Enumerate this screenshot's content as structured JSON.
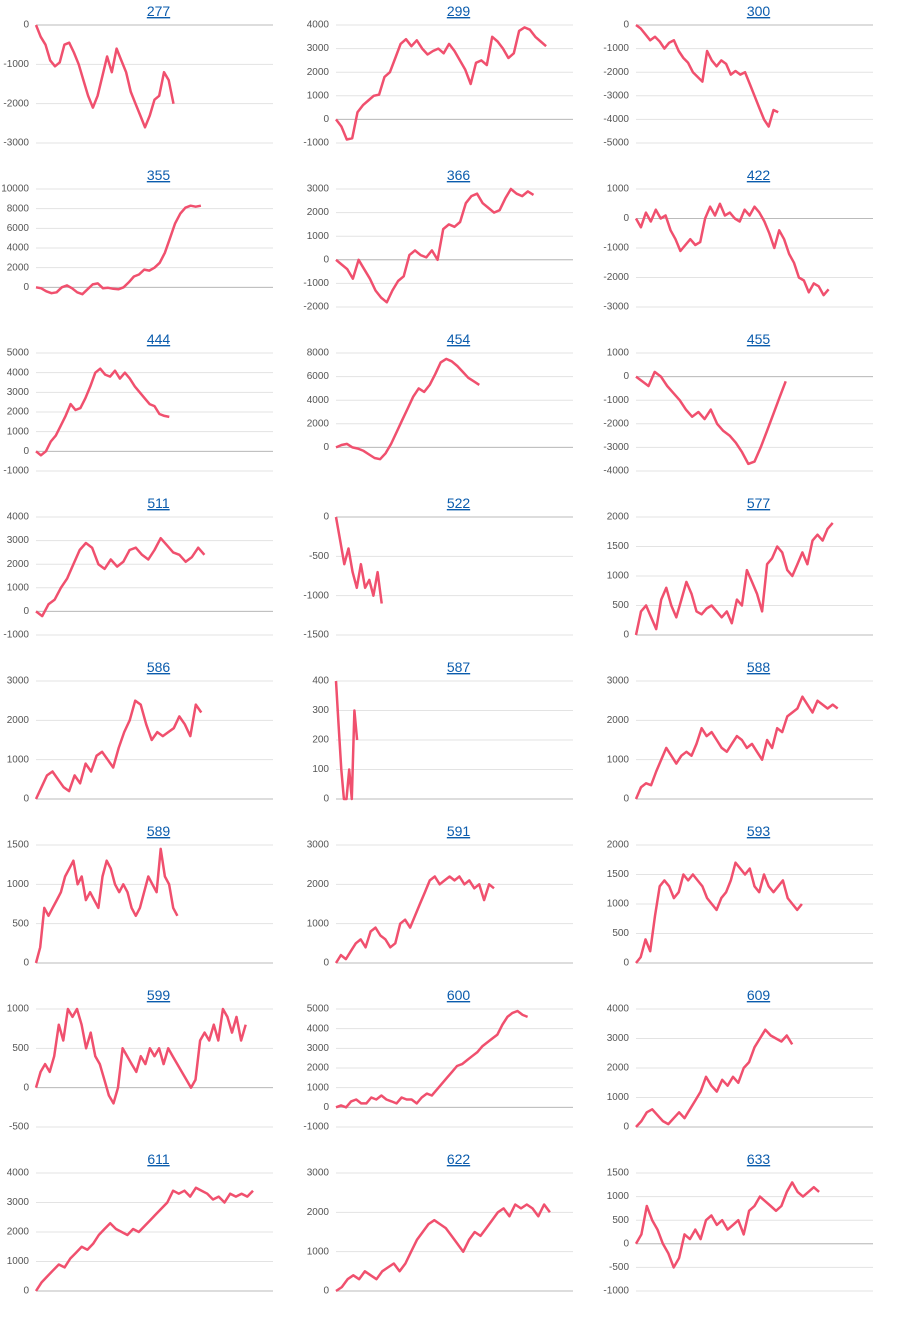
{
  "chart_data": [
    {
      "type": "line",
      "title": "277",
      "color": "#f0506e",
      "xlim": [
        0,
        50
      ],
      "ylim": [
        -3000,
        0
      ],
      "yticks": [
        0,
        -1000,
        -2000,
        -3000
      ],
      "grid": true,
      "values": [
        0,
        -300,
        -500,
        -900,
        -1050,
        -950,
        -500,
        -450,
        -700,
        -1000,
        -1400,
        -1800,
        -2100,
        -1800,
        -1300,
        -800,
        -1200,
        -600,
        -900,
        -1200,
        -1700,
        -2000,
        -2300,
        -2600,
        -2300,
        -1900,
        -1800,
        -1200,
        -1400,
        -2000
      ]
    },
    {
      "type": "line",
      "title": "299",
      "color": "#f0506e",
      "xlim": [
        0,
        44
      ],
      "ylim": [
        -1000,
        4000
      ],
      "yticks": [
        4000,
        3000,
        2000,
        1000,
        0,
        -1000
      ],
      "grid": true,
      "values": [
        0,
        -300,
        -850,
        -800,
        300,
        600,
        800,
        1000,
        1050,
        1800,
        2000,
        2600,
        3200,
        3400,
        3100,
        3350,
        3000,
        2750,
        2900,
        3000,
        2800,
        3200,
        2900,
        2500,
        2100,
        1500,
        2400,
        2500,
        2300,
        3500,
        3300,
        3000,
        2600,
        2800,
        3750,
        3900,
        3800,
        3500,
        3300,
        3100
      ]
    },
    {
      "type": "line",
      "title": "300",
      "color": "#f0506e",
      "xlim": [
        0,
        50
      ],
      "ylim": [
        -5000,
        0
      ],
      "yticks": [
        0,
        -1000,
        -2000,
        -3000,
        -4000,
        -5000
      ],
      "grid": true,
      "values": [
        0,
        -150,
        -400,
        -650,
        -500,
        -700,
        -1000,
        -750,
        -650,
        -1100,
        -1400,
        -1600,
        -2000,
        -2200,
        -2400,
        -1100,
        -1500,
        -1750,
        -1500,
        -1650,
        -2100,
        -1950,
        -2100,
        -2000,
        -2500,
        -3000,
        -3500,
        -4000,
        -4300,
        -3600,
        -3700
      ]
    },
    {
      "type": "line",
      "title": "355",
      "color": "#f0506e",
      "xlim": [
        0,
        46
      ],
      "ylim": [
        -2000,
        10000
      ],
      "yticks": [
        10000,
        8000,
        6000,
        4000,
        2000,
        0
      ],
      "grid": true,
      "values": [
        0,
        -100,
        -400,
        -600,
        -500,
        0,
        200,
        -100,
        -500,
        -700,
        -200,
        300,
        400,
        -100,
        -50,
        -150,
        -200,
        0,
        500,
        1100,
        1300,
        1800,
        1700,
        2000,
        2500,
        3500,
        5000,
        6500,
        7500,
        8100,
        8300,
        8200,
        8300
      ]
    },
    {
      "type": "line",
      "title": "366",
      "color": "#f0506e",
      "xlim": [
        0,
        42
      ],
      "ylim": [
        -2000,
        3000
      ],
      "yticks": [
        3000,
        2000,
        1000,
        0,
        -1000,
        -2000
      ],
      "grid": true,
      "values": [
        0,
        -200,
        -400,
        -800,
        0,
        -400,
        -800,
        -1300,
        -1600,
        -1800,
        -1300,
        -900,
        -700,
        200,
        400,
        200,
        100,
        400,
        0,
        1300,
        1500,
        1400,
        1600,
        2400,
        2700,
        2800,
        2400,
        2200,
        2000,
        2100,
        2600,
        3000,
        2800,
        2700,
        2900,
        2750
      ]
    },
    {
      "type": "line",
      "title": "422",
      "color": "#f0506e",
      "xlim": [
        0,
        48
      ],
      "ylim": [
        -3000,
        1000
      ],
      "yticks": [
        1000,
        0,
        -1000,
        -2000,
        -3000
      ],
      "grid": true,
      "values": [
        0,
        -300,
        200,
        -100,
        300,
        0,
        100,
        -400,
        -700,
        -1100,
        -900,
        -700,
        -900,
        -800,
        0,
        400,
        100,
        500,
        100,
        200,
        0,
        -100,
        300,
        100,
        400,
        200,
        -100,
        -500,
        -1000,
        -400,
        -700,
        -1200,
        -1500,
        -2000,
        -2100,
        -2500,
        -2200,
        -2300,
        -2600,
        -2400
      ]
    },
    {
      "type": "line",
      "title": "444",
      "color": "#f0506e",
      "xlim": [
        0,
        48
      ],
      "ylim": [
        -1000,
        5000
      ],
      "yticks": [
        5000,
        4000,
        3000,
        2000,
        1000,
        0,
        -1000
      ],
      "grid": true,
      "values": [
        0,
        -200,
        0,
        500,
        800,
        1300,
        1800,
        2400,
        2100,
        2200,
        2700,
        3300,
        4000,
        4200,
        3900,
        3800,
        4100,
        3700,
        4000,
        3700,
        3300,
        3000,
        2700,
        2400,
        2300,
        1900,
        1800,
        1750
      ]
    },
    {
      "type": "line",
      "title": "454",
      "color": "#f0506e",
      "xlim": [
        0,
        43
      ],
      "ylim": [
        -2000,
        8000
      ],
      "yticks": [
        8000,
        6000,
        4000,
        2000,
        0
      ],
      "grid": true,
      "values": [
        0,
        200,
        300,
        0,
        -100,
        -300,
        -600,
        -900,
        -1000,
        -500,
        300,
        1300,
        2300,
        3300,
        4300,
        5000,
        4700,
        5300,
        6200,
        7200,
        7500,
        7300,
        6900,
        6400,
        5900,
        5600,
        5300
      ]
    },
    {
      "type": "line",
      "title": "455",
      "color": "#f0506e",
      "xlim": [
        0,
        38
      ],
      "ylim": [
        -4000,
        1000
      ],
      "yticks": [
        1000,
        0,
        -1000,
        -2000,
        -3000,
        -4000
      ],
      "grid": true,
      "values": [
        0,
        -200,
        -400,
        200,
        0,
        -400,
        -700,
        -1000,
        -1400,
        -1700,
        -1500,
        -1800,
        -1400,
        -2000,
        -2300,
        -2500,
        -2800,
        -3200,
        -3700,
        -3600,
        -3000,
        -2300,
        -1600,
        -900,
        -200
      ]
    },
    {
      "type": "line",
      "title": "511",
      "color": "#f0506e",
      "xlim": [
        0,
        38
      ],
      "ylim": [
        -1000,
        4000
      ],
      "yticks": [
        4000,
        3000,
        2000,
        1000,
        0,
        -1000
      ],
      "grid": true,
      "values": [
        0,
        -200,
        300,
        500,
        1000,
        1400,
        2000,
        2600,
        2900,
        2700,
        2000,
        1800,
        2200,
        1900,
        2100,
        2600,
        2700,
        2400,
        2200,
        2600,
        3100,
        2800,
        2500,
        2400,
        2100,
        2300,
        2700,
        2400
      ]
    },
    {
      "type": "line",
      "title": "522",
      "color": "#f0506e",
      "xlim": [
        0,
        57
      ],
      "ylim": [
        -1500,
        0
      ],
      "yticks": [
        0,
        -500,
        -1000,
        -1500
      ],
      "grid": true,
      "values": [
        0,
        -300,
        -600,
        -400,
        -700,
        -900,
        -600,
        -900,
        -800,
        -1000,
        -700,
        -1100
      ]
    },
    {
      "type": "line",
      "title": "577",
      "color": "#f0506e",
      "xlim": [
        0,
        47
      ],
      "ylim": [
        0,
        2000
      ],
      "yticks": [
        2000,
        1500,
        1000,
        500,
        0
      ],
      "grid": true,
      "values": [
        0,
        400,
        500,
        300,
        100,
        600,
        800,
        500,
        300,
        600,
        900,
        700,
        400,
        350,
        450,
        500,
        400,
        300,
        400,
        200,
        600,
        500,
        1100,
        900,
        700,
        400,
        1200,
        1300,
        1500,
        1400,
        1100,
        1000,
        1200,
        1400,
        1200,
        1600,
        1700,
        1600,
        1800,
        1900
      ]
    },
    {
      "type": "line",
      "title": "586",
      "color": "#f0506e",
      "xlim": [
        0,
        43
      ],
      "ylim": [
        0,
        3000
      ],
      "yticks": [
        3000,
        2000,
        1000,
        0
      ],
      "grid": true,
      "values": [
        0,
        300,
        600,
        700,
        500,
        300,
        200,
        600,
        400,
        900,
        700,
        1100,
        1200,
        1000,
        800,
        1300,
        1700,
        2000,
        2500,
        2400,
        1900,
        1500,
        1700,
        1600,
        1700,
        1800,
        2100,
        1900,
        1600,
        2400,
        2200
      ]
    },
    {
      "type": "line",
      "title": "587",
      "color": "#f0506e",
      "xlim": [
        0,
        90
      ],
      "ylim": [
        0,
        400
      ],
      "yticks": [
        400,
        300,
        200,
        100,
        0
      ],
      "grid": true,
      "values": [
        400,
        250,
        100,
        0,
        0,
        100,
        0,
        300,
        200
      ]
    },
    {
      "type": "line",
      "title": "588",
      "color": "#f0506e",
      "xlim": [
        0,
        47
      ],
      "ylim": [
        0,
        3000
      ],
      "yticks": [
        3000,
        2000,
        1000,
        0
      ],
      "grid": true,
      "values": [
        0,
        300,
        400,
        350,
        700,
        1000,
        1300,
        1100,
        900,
        1100,
        1200,
        1100,
        1400,
        1800,
        1600,
        1700,
        1500,
        1300,
        1200,
        1400,
        1600,
        1500,
        1300,
        1400,
        1200,
        1000,
        1500,
        1300,
        1800,
        1700,
        2100,
        2200,
        2300,
        2600,
        2400,
        2200,
        2500,
        2400,
        2300,
        2400,
        2300
      ]
    },
    {
      "type": "line",
      "title": "589",
      "color": "#f0506e",
      "xlim": [
        0,
        57
      ],
      "ylim": [
        0,
        1500
      ],
      "yticks": [
        1500,
        1000,
        500,
        0
      ],
      "grid": true,
      "values": [
        0,
        200,
        700,
        600,
        700,
        800,
        900,
        1100,
        1200,
        1300,
        1000,
        1100,
        800,
        900,
        800,
        700,
        1100,
        1300,
        1200,
        1000,
        900,
        1000,
        900,
        700,
        600,
        700,
        900,
        1100,
        1000,
        900,
        1450,
        1100,
        1000,
        700,
        600
      ]
    },
    {
      "type": "line",
      "title": "591",
      "color": "#f0506e",
      "xlim": [
        0,
        48
      ],
      "ylim": [
        0,
        3000
      ],
      "yticks": [
        3000,
        2000,
        1000,
        0
      ],
      "grid": true,
      "values": [
        0,
        200,
        100,
        300,
        500,
        600,
        400,
        800,
        900,
        700,
        600,
        400,
        500,
        1000,
        1100,
        900,
        1200,
        1500,
        1800,
        2100,
        2200,
        2000,
        2100,
        2200,
        2100,
        2200,
        2000,
        2100,
        1900,
        2000,
        1600,
        2000,
        1900
      ]
    },
    {
      "type": "line",
      "title": "593",
      "color": "#f0506e",
      "xlim": [
        0,
        50
      ],
      "ylim": [
        0,
        2000
      ],
      "yticks": [
        2000,
        1500,
        1000,
        500,
        0
      ],
      "grid": true,
      "values": [
        0,
        100,
        400,
        200,
        800,
        1300,
        1400,
        1300,
        1100,
        1200,
        1500,
        1400,
        1500,
        1400,
        1300,
        1100,
        1000,
        900,
        1100,
        1200,
        1400,
        1700,
        1600,
        1500,
        1600,
        1300,
        1200,
        1500,
        1300,
        1200,
        1300,
        1400,
        1100,
        1000,
        900,
        1000
      ]
    },
    {
      "type": "line",
      "title": "599",
      "color": "#f0506e",
      "xlim": [
        0,
        52
      ],
      "ylim": [
        -500,
        1000
      ],
      "yticks": [
        1000,
        500,
        0,
        -500
      ],
      "grid": true,
      "values": [
        0,
        200,
        300,
        200,
        400,
        800,
        600,
        1000,
        900,
        1000,
        800,
        500,
        700,
        400,
        300,
        100,
        -100,
        -200,
        0,
        500,
        400,
        300,
        200,
        400,
        300,
        500,
        400,
        500,
        300,
        500,
        400,
        300,
        200,
        100,
        0,
        100,
        600,
        700,
        600,
        800,
        600,
        1000,
        900,
        700,
        900,
        600,
        800
      ]
    },
    {
      "type": "line",
      "title": "600",
      "color": "#f0506e",
      "xlim": [
        0,
        47
      ],
      "ylim": [
        -1000,
        5000
      ],
      "yticks": [
        5000,
        4000,
        3000,
        2000,
        1000,
        0,
        -1000
      ],
      "grid": true,
      "values": [
        0,
        100,
        0,
        300,
        400,
        200,
        200,
        500,
        400,
        600,
        400,
        300,
        200,
        500,
        400,
        400,
        200,
        500,
        700,
        600,
        900,
        1200,
        1500,
        1800,
        2100,
        2200,
        2400,
        2600,
        2800,
        3100,
        3300,
        3500,
        3700,
        4200,
        4600,
        4800,
        4900,
        4700,
        4600
      ]
    },
    {
      "type": "line",
      "title": "609",
      "color": "#f0506e",
      "xlim": [
        0,
        44
      ],
      "ylim": [
        0,
        4000
      ],
      "yticks": [
        4000,
        3000,
        2000,
        1000,
        0
      ],
      "grid": true,
      "values": [
        0,
        200,
        500,
        600,
        400,
        200,
        100,
        300,
        500,
        300,
        600,
        900,
        1200,
        1700,
        1400,
        1200,
        1600,
        1400,
        1700,
        1500,
        2000,
        2200,
        2700,
        3000,
        3300,
        3100,
        3000,
        2900,
        3100,
        2800
      ]
    },
    {
      "type": "line",
      "title": "611",
      "color": "#f0506e",
      "xlim": [
        0,
        41.5
      ],
      "ylim": [
        0,
        4000
      ],
      "yticks": [
        4000,
        3000,
        2000,
        1000,
        0
      ],
      "grid": true,
      "values": [
        0,
        300,
        500,
        700,
        900,
        800,
        1100,
        1300,
        1500,
        1400,
        1600,
        1900,
        2100,
        2300,
        2100,
        2000,
        1900,
        2100,
        2000,
        2200,
        2400,
        2600,
        2800,
        3000,
        3400,
        3300,
        3400,
        3200,
        3500,
        3400,
        3300,
        3100,
        3200,
        3000,
        3300,
        3200,
        3300,
        3200,
        3400
      ]
    },
    {
      "type": "line",
      "title": "622",
      "color": "#f0506e",
      "xlim": [
        0,
        41
      ],
      "ylim": [
        0,
        3000
      ],
      "yticks": [
        3000,
        2000,
        1000,
        0
      ],
      "grid": true,
      "values": [
        0,
        100,
        300,
        400,
        300,
        500,
        400,
        300,
        500,
        600,
        700,
        500,
        700,
        1000,
        1300,
        1500,
        1700,
        1800,
        1700,
        1600,
        1400,
        1200,
        1000,
        1300,
        1500,
        1400,
        1600,
        1800,
        2000,
        2100,
        1900,
        2200,
        2100,
        2200,
        2100,
        1900,
        2200,
        2000
      ]
    },
    {
      "type": "line",
      "title": "633",
      "color": "#f0506e",
      "xlim": [
        0,
        44
      ],
      "ylim": [
        -1000,
        1500
      ],
      "yticks": [
        1500,
        1000,
        500,
        0,
        -500,
        -1000
      ],
      "grid": true,
      "values": [
        0,
        200,
        800,
        500,
        300,
        0,
        -200,
        -500,
        -300,
        200,
        100,
        300,
        100,
        500,
        600,
        400,
        500,
        300,
        400,
        500,
        200,
        700,
        800,
        1000,
        900,
        800,
        700,
        800,
        1100,
        1300,
        1100,
        1000,
        1100,
        1200,
        1100
      ]
    }
  ]
}
